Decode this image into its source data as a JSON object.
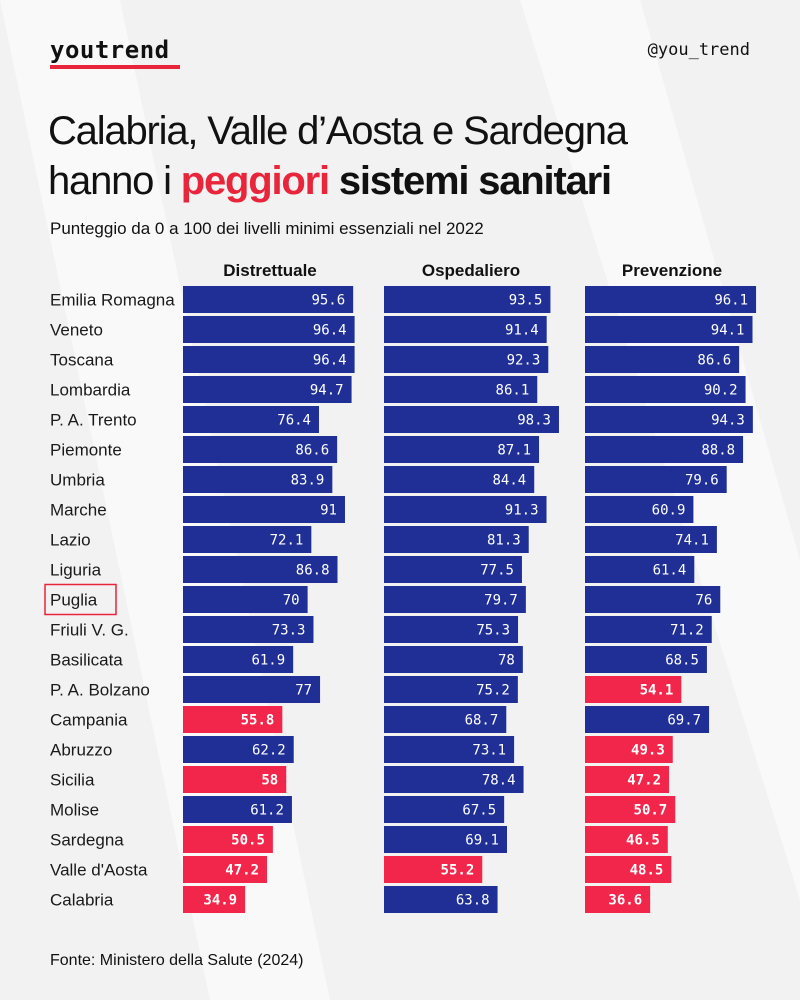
{
  "brand": {
    "name": "youtrend",
    "handle": "@you_trend"
  },
  "title": {
    "line1": "Calabria, Valle d’Aosta e Sardegna",
    "line2_pre": "hanno i ",
    "line2_accent": "peggiori",
    "line2_post": " sistemi sanitari"
  },
  "subtitle": "Punteggio da 0 a 100 dei livelli minimi essenziali nel 2022",
  "source": "Fonte: Ministero della Salute (2024)",
  "colors": {
    "bar": "#1f2f96",
    "low": "#f2264a",
    "highlight_box": "#e8253b",
    "background": "#f2f2f2"
  },
  "chart_data": {
    "type": "bar",
    "orientation": "horizontal",
    "title": "Calabria, Valle d’Aosta e Sardegna hanno i peggiori sistemi sanitari",
    "subtitle": "Punteggio da 0 a 100 dei livelli minimi essenziali nel 2022",
    "threshold": 60,
    "highlighted_category": "Puglia",
    "xlim": [
      0,
      100
    ],
    "grid": false,
    "categories": [
      "Emilia Romagna",
      "Veneto",
      "Toscana",
      "Lombardia",
      "P. A. Trento",
      "Piemonte",
      "Umbria",
      "Marche",
      "Lazio",
      "Liguria",
      "Puglia",
      "Friuli V. G.",
      "Basilicata",
      "P. A. Bolzano",
      "Campania",
      "Abruzzo",
      "Sicilia",
      "Molise",
      "Sardegna",
      "Valle d'Aosta",
      "Calabria"
    ],
    "series": [
      {
        "name": "Distrettuale",
        "values": [
          95.6,
          96.4,
          96.4,
          94.7,
          76.4,
          86.6,
          83.9,
          91,
          72.1,
          86.8,
          70,
          73.3,
          61.9,
          77,
          55.8,
          62.2,
          58,
          61.2,
          50.5,
          47.2,
          34.9
        ]
      },
      {
        "name": "Ospedaliero",
        "values": [
          93.5,
          91.4,
          92.3,
          86.1,
          98.3,
          87.1,
          84.4,
          91.3,
          81.3,
          77.5,
          79.7,
          75.3,
          78,
          75.2,
          68.7,
          73.1,
          78.4,
          67.5,
          69.1,
          55.2,
          63.8
        ]
      },
      {
        "name": "Prevenzione",
        "values": [
          96.1,
          94.1,
          86.6,
          90.2,
          94.3,
          88.8,
          79.6,
          60.9,
          74.1,
          61.4,
          76,
          71.2,
          68.5,
          54.1,
          69.7,
          49.3,
          47.2,
          50.7,
          46.5,
          48.5,
          36.6
        ]
      }
    ]
  }
}
